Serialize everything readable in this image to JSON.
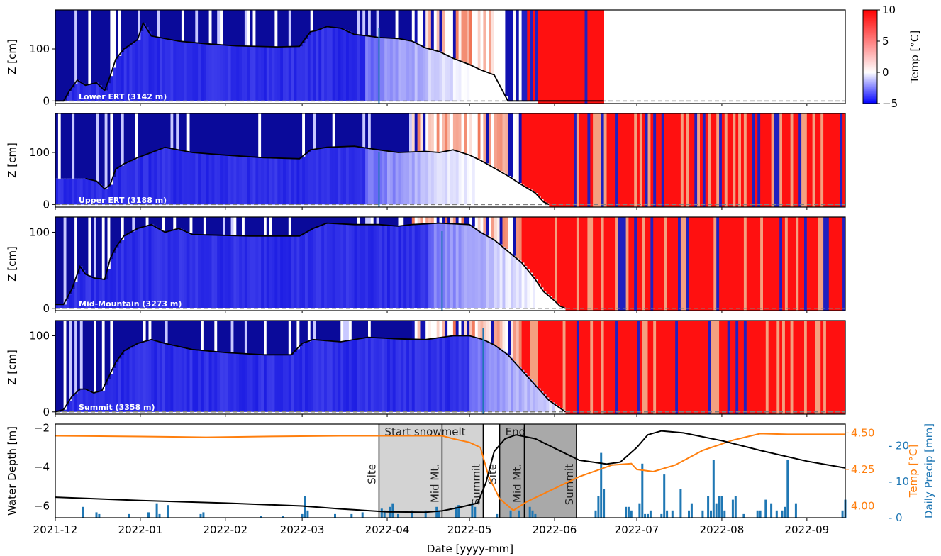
{
  "colors": {
    "snow_line": "#000000",
    "zero_line": "#808080",
    "vline": "#1f77b4",
    "temp_line": "#ff7f0e",
    "water_line": "#000000",
    "precip_bar": "#1f77b4",
    "shade_light": "#d3d3d3",
    "shade_dark": "#a9a9a9",
    "cmap_low": "#0000ff",
    "cmap_mid": "#ffffff",
    "cmap_high": "#ff0000"
  },
  "colorbar": {
    "label": "Temp [°C]",
    "ticks": [
      "10",
      "5",
      "0",
      "−5"
    ],
    "range": [
      -5,
      10
    ]
  },
  "x_ticks": [
    "2021-12",
    "2022-01",
    "2022-02",
    "2022-03",
    "2022-04",
    "2022-05",
    "2022-06",
    "2022-07",
    "2022-08",
    "2022-09"
  ],
  "x_label": "Date [yyyy-mm]",
  "chart_data": [
    {
      "type": "heatmap",
      "panel": "lower",
      "site_label": "Lower ERT (3142 m)",
      "ylabel": "Z [cm]",
      "yticks": [
        "0",
        "100"
      ],
      "ylim": [
        -5,
        175
      ],
      "data_end": "2022-06-19",
      "marker_date": "2022-03-29",
      "snow_depth": [
        [
          "2021-12-01",
          0
        ],
        [
          "2021-12-04",
          0
        ],
        [
          "2021-12-06",
          18
        ],
        [
          "2021-12-09",
          40
        ],
        [
          "2021-12-12",
          30
        ],
        [
          "2021-12-16",
          35
        ],
        [
          "2021-12-19",
          20
        ],
        [
          "2021-12-21",
          48
        ],
        [
          "2021-12-23",
          80
        ],
        [
          "2021-12-26",
          100
        ],
        [
          "2021-12-31",
          118
        ],
        [
          "2022-01-02",
          150
        ],
        [
          "2022-01-05",
          125
        ],
        [
          "2022-01-15",
          115
        ],
        [
          "2022-01-25",
          110
        ],
        [
          "2022-02-05",
          106
        ],
        [
          "2022-02-20",
          104
        ],
        [
          "2022-02-28",
          105
        ],
        [
          "2022-03-04",
          133
        ],
        [
          "2022-03-06",
          135
        ],
        [
          "2022-03-10",
          143
        ],
        [
          "2022-03-15",
          140
        ],
        [
          "2022-03-20",
          128
        ],
        [
          "2022-03-25",
          125
        ],
        [
          "2022-03-29",
          122
        ],
        [
          "2022-04-05",
          120
        ],
        [
          "2022-04-10",
          115
        ],
        [
          "2022-04-15",
          102
        ],
        [
          "2022-04-20",
          95
        ],
        [
          "2022-04-25",
          82
        ],
        [
          "2022-05-01",
          70
        ],
        [
          "2022-05-05",
          60
        ],
        [
          "2022-05-10",
          50
        ],
        [
          "2022-05-13",
          20
        ],
        [
          "2022-05-15",
          0
        ],
        [
          "2022-06-19",
          0
        ]
      ]
    },
    {
      "type": "heatmap",
      "panel": "upper",
      "site_label": "Upper ERT (3188 m)",
      "ylabel": "Z [cm]",
      "yticks": [
        "0",
        "100"
      ],
      "ylim": [
        -5,
        175
      ],
      "data_end": "2022-09-15",
      "marker_date": "2022-03-29",
      "snow_depth": [
        [
          "2021-12-12",
          50
        ],
        [
          "2021-12-16",
          45
        ],
        [
          "2021-12-19",
          30
        ],
        [
          "2021-12-21",
          38
        ],
        [
          "2021-12-23",
          68
        ],
        [
          "2021-12-26",
          78
        ],
        [
          "2021-12-31",
          90
        ],
        [
          "2022-01-05",
          100
        ],
        [
          "2022-01-10",
          110
        ],
        [
          "2022-01-20",
          100
        ],
        [
          "2022-02-01",
          95
        ],
        [
          "2022-02-15",
          90
        ],
        [
          "2022-02-28",
          88
        ],
        [
          "2022-03-04",
          105
        ],
        [
          "2022-03-10",
          110
        ],
        [
          "2022-03-20",
          112
        ],
        [
          "2022-03-29",
          105
        ],
        [
          "2022-04-05",
          100
        ],
        [
          "2022-04-15",
          102
        ],
        [
          "2022-04-20",
          100
        ],
        [
          "2022-04-25",
          105
        ],
        [
          "2022-05-01",
          95
        ],
        [
          "2022-05-05",
          85
        ],
        [
          "2022-05-10",
          70
        ],
        [
          "2022-05-15",
          55
        ],
        [
          "2022-05-20",
          38
        ],
        [
          "2022-05-25",
          22
        ],
        [
          "2022-05-28",
          5
        ],
        [
          "2022-05-30",
          0
        ]
      ]
    },
    {
      "type": "heatmap",
      "panel": "mid",
      "site_label": "Mid-Mountain (3273 m)",
      "ylabel": "Z [cm]",
      "yticks": [
        "0",
        "100"
      ],
      "ylim": [
        -3,
        120
      ],
      "data_end": "2022-09-15",
      "marker_date": "2022-04-21",
      "snow_depth": [
        [
          "2021-12-01",
          5
        ],
        [
          "2021-12-04",
          5
        ],
        [
          "2021-12-07",
          25
        ],
        [
          "2021-12-10",
          55
        ],
        [
          "2021-12-12",
          45
        ],
        [
          "2021-12-15",
          40
        ],
        [
          "2021-12-19",
          38
        ],
        [
          "2021-12-21",
          65
        ],
        [
          "2021-12-23",
          80
        ],
        [
          "2021-12-26",
          95
        ],
        [
          "2021-12-31",
          105
        ],
        [
          "2022-01-05",
          110
        ],
        [
          "2022-01-10",
          100
        ],
        [
          "2022-01-15",
          105
        ],
        [
          "2022-01-20",
          97
        ],
        [
          "2022-02-10",
          95
        ],
        [
          "2022-02-28",
          95
        ],
        [
          "2022-03-05",
          105
        ],
        [
          "2022-03-10",
          112
        ],
        [
          "2022-03-20",
          110
        ],
        [
          "2022-03-29",
          110
        ],
        [
          "2022-04-05",
          108
        ],
        [
          "2022-04-10",
          110
        ],
        [
          "2022-04-20",
          112
        ],
        [
          "2022-05-01",
          110
        ],
        [
          "2022-05-05",
          100
        ],
        [
          "2022-05-10",
          90
        ],
        [
          "2022-05-15",
          75
        ],
        [
          "2022-05-20",
          60
        ],
        [
          "2022-05-25",
          38
        ],
        [
          "2022-05-28",
          22
        ],
        [
          "2022-06-01",
          10
        ],
        [
          "2022-06-03",
          3
        ],
        [
          "2022-06-05",
          0
        ]
      ]
    },
    {
      "type": "heatmap",
      "panel": "summit",
      "site_label": "Summit (3358 m)",
      "ylabel": "Z [cm]",
      "yticks": [
        "0",
        "100"
      ],
      "ylim": [
        -3,
        120
      ],
      "data_end": "2022-09-15",
      "marker_date": "2022-05-06",
      "snow_depth": [
        [
          "2021-12-01",
          0
        ],
        [
          "2021-12-04",
          3
        ],
        [
          "2021-12-07",
          20
        ],
        [
          "2021-12-10",
          30
        ],
        [
          "2021-12-12",
          30
        ],
        [
          "2021-12-15",
          25
        ],
        [
          "2021-12-18",
          28
        ],
        [
          "2021-12-21",
          50
        ],
        [
          "2021-12-23",
          65
        ],
        [
          "2021-12-26",
          80
        ],
        [
          "2021-12-31",
          90
        ],
        [
          "2022-01-05",
          95
        ],
        [
          "2022-01-10",
          90
        ],
        [
          "2022-01-20",
          82
        ],
        [
          "2022-02-01",
          78
        ],
        [
          "2022-02-15",
          75
        ],
        [
          "2022-02-25",
          75
        ],
        [
          "2022-03-01",
          90
        ],
        [
          "2022-03-05",
          95
        ],
        [
          "2022-03-15",
          92
        ],
        [
          "2022-03-25",
          98
        ],
        [
          "2022-04-05",
          96
        ],
        [
          "2022-04-15",
          95
        ],
        [
          "2022-04-25",
          100
        ],
        [
          "2022-05-01",
          100
        ],
        [
          "2022-05-06",
          95
        ],
        [
          "2022-05-10",
          88
        ],
        [
          "2022-05-15",
          75
        ],
        [
          "2022-05-20",
          55
        ],
        [
          "2022-05-25",
          35
        ],
        [
          "2022-05-30",
          15
        ],
        [
          "2022-06-03",
          5
        ],
        [
          "2022-06-05",
          0
        ]
      ]
    },
    {
      "type": "line",
      "panel": "bottom",
      "ylabel_left": "Water Depth [m]",
      "ylabel_right_temp": "Temp [°C]",
      "ylabel_right_precip": "Daily Precip [mm]",
      "yticks_left": [
        "−2",
        "−4",
        "−6"
      ],
      "yticks_temp": [
        "4.50",
        "4.25",
        "4.00"
      ],
      "yticks_precip": [
        "20",
        "10",
        "0"
      ],
      "ylim_left": [
        -6.6,
        -1.8
      ],
      "ylim_temp": [
        3.92,
        4.56
      ],
      "ylim_precip": [
        0,
        26
      ],
      "regions": [
        {
          "start": "2022-03-29",
          "end": "2022-05-06",
          "shade": "light",
          "label": "Start snowmelt"
        },
        {
          "start": "2022-05-12",
          "end": "2022-06-09",
          "shade": "dark",
          "label": "End"
        }
      ],
      "vlines": [
        {
          "date": "2022-03-29",
          "label": "Site"
        },
        {
          "date": "2022-04-21",
          "label": "Mid Mt."
        },
        {
          "date": "2022-05-06",
          "label": "Summit"
        },
        {
          "date": "2022-05-12",
          "label": "Site"
        },
        {
          "date": "2022-05-21",
          "label": "Mid Mt."
        },
        {
          "date": "2022-06-09",
          "label": "Summit"
        }
      ],
      "series": [
        {
          "name": "Water Depth",
          "axis": "left",
          "points": [
            [
              "2021-12-01",
              -5.55
            ],
            [
              "2022-01-01",
              -5.72
            ],
            [
              "2022-02-01",
              -5.85
            ],
            [
              "2022-03-01",
              -6.0
            ],
            [
              "2022-03-15",
              -6.15
            ],
            [
              "2022-04-01",
              -6.3
            ],
            [
              "2022-04-15",
              -6.32
            ],
            [
              "2022-04-21",
              -6.25
            ],
            [
              "2022-04-28",
              -6.05
            ],
            [
              "2022-05-04",
              -5.85
            ],
            [
              "2022-05-07",
              -4.8
            ],
            [
              "2022-05-10",
              -3.2
            ],
            [
              "2022-05-14",
              -2.55
            ],
            [
              "2022-05-18",
              -2.35
            ],
            [
              "2022-05-25",
              -2.55
            ],
            [
              "2022-06-02",
              -3.1
            ],
            [
              "2022-06-10",
              -3.65
            ],
            [
              "2022-06-20",
              -3.85
            ],
            [
              "2022-06-25",
              -3.75
            ],
            [
              "2022-07-01",
              -3.0
            ],
            [
              "2022-07-05",
              -2.35
            ],
            [
              "2022-07-10",
              -2.15
            ],
            [
              "2022-07-18",
              -2.25
            ],
            [
              "2022-08-01",
              -2.65
            ],
            [
              "2022-08-15",
              -3.15
            ],
            [
              "2022-09-01",
              -3.7
            ],
            [
              "2022-09-15",
              -4.05
            ]
          ]
        },
        {
          "name": "Temp",
          "axis": "temp",
          "points": [
            [
              "2021-12-01",
              4.48
            ],
            [
              "2022-01-01",
              4.475
            ],
            [
              "2022-01-25",
              4.47
            ],
            [
              "2022-02-15",
              4.475
            ],
            [
              "2022-03-15",
              4.48
            ],
            [
              "2022-04-21",
              4.48
            ],
            [
              "2022-04-25",
              4.46
            ],
            [
              "2022-05-01",
              4.435
            ],
            [
              "2022-05-05",
              4.4
            ],
            [
              "2022-05-08",
              4.2
            ],
            [
              "2022-05-12",
              4.05
            ],
            [
              "2022-05-17",
              3.97
            ],
            [
              "2022-05-22",
              4.03
            ],
            [
              "2022-06-01",
              4.12
            ],
            [
              "2022-06-10",
              4.2
            ],
            [
              "2022-06-22",
              4.28
            ],
            [
              "2022-06-29",
              4.29
            ],
            [
              "2022-07-01",
              4.25
            ],
            [
              "2022-07-07",
              4.235
            ],
            [
              "2022-07-15",
              4.28
            ],
            [
              "2022-07-25",
              4.38
            ],
            [
              "2022-08-05",
              4.45
            ],
            [
              "2022-08-15",
              4.495
            ],
            [
              "2022-08-25",
              4.49
            ],
            [
              "2022-09-15",
              4.49
            ]
          ]
        }
      ],
      "precip": [
        [
          "2021-12-11",
          3
        ],
        [
          "2021-12-16",
          1.5
        ],
        [
          "2021-12-17",
          1
        ],
        [
          "2021-12-28",
          1
        ],
        [
          "2022-01-04",
          1.5
        ],
        [
          "2022-01-07",
          4
        ],
        [
          "2022-01-08",
          1
        ],
        [
          "2022-01-11",
          3.5
        ],
        [
          "2022-01-23",
          1
        ],
        [
          "2022-01-24",
          1.5
        ],
        [
          "2022-02-14",
          0.5
        ],
        [
          "2022-02-22",
          0.5
        ],
        [
          "2022-03-01",
          1
        ],
        [
          "2022-03-02",
          6
        ],
        [
          "2022-03-03",
          2
        ],
        [
          "2022-03-13",
          1
        ],
        [
          "2022-03-19",
          1
        ],
        [
          "2022-03-23",
          1.5
        ],
        [
          "2022-03-30",
          2.5
        ],
        [
          "2022-03-31",
          2
        ],
        [
          "2022-04-02",
          3
        ],
        [
          "2022-04-03",
          4
        ],
        [
          "2022-04-05",
          1
        ],
        [
          "2022-04-10",
          2
        ],
        [
          "2022-04-15",
          2
        ],
        [
          "2022-04-19",
          3
        ],
        [
          "2022-04-20",
          2
        ],
        [
          "2022-04-26",
          3
        ],
        [
          "2022-04-27",
          3.5
        ],
        [
          "2022-05-02",
          4
        ],
        [
          "2022-05-03",
          3
        ],
        [
          "2022-05-11",
          1
        ],
        [
          "2022-05-16",
          2
        ],
        [
          "2022-05-19",
          2
        ],
        [
          "2022-05-23",
          3
        ],
        [
          "2022-05-24",
          2
        ],
        [
          "2022-05-25",
          1
        ],
        [
          "2022-06-16",
          2
        ],
        [
          "2022-06-17",
          6
        ],
        [
          "2022-06-18",
          18
        ],
        [
          "2022-06-19",
          8
        ],
        [
          "2022-06-27",
          3
        ],
        [
          "2022-06-28",
          3
        ],
        [
          "2022-06-29",
          2
        ],
        [
          "2022-07-02",
          4
        ],
        [
          "2022-07-03",
          15
        ],
        [
          "2022-07-04",
          1
        ],
        [
          "2022-07-05",
          1
        ],
        [
          "2022-07-06",
          2
        ],
        [
          "2022-07-10",
          1
        ],
        [
          "2022-07-11",
          12
        ],
        [
          "2022-07-12",
          2
        ],
        [
          "2022-07-14",
          2
        ],
        [
          "2022-07-17",
          8
        ],
        [
          "2022-07-20",
          2
        ],
        [
          "2022-07-21",
          4
        ],
        [
          "2022-07-25",
          2
        ],
        [
          "2022-07-27",
          6
        ],
        [
          "2022-07-28",
          2
        ],
        [
          "2022-07-29",
          16
        ],
        [
          "2022-07-30",
          4
        ],
        [
          "2022-07-31",
          6
        ],
        [
          "2022-08-01",
          6
        ],
        [
          "2022-08-02",
          2
        ],
        [
          "2022-08-05",
          5
        ],
        [
          "2022-08-06",
          6
        ],
        [
          "2022-08-09",
          1
        ],
        [
          "2022-08-14",
          2
        ],
        [
          "2022-08-15",
          2
        ],
        [
          "2022-08-17",
          5
        ],
        [
          "2022-08-19",
          4
        ],
        [
          "2022-08-21",
          2
        ],
        [
          "2022-08-23",
          2
        ],
        [
          "2022-08-24",
          3
        ],
        [
          "2022-08-25",
          16
        ],
        [
          "2022-08-28",
          4
        ],
        [
          "2022-09-14",
          2
        ],
        [
          "2022-09-15",
          5
        ]
      ]
    }
  ]
}
